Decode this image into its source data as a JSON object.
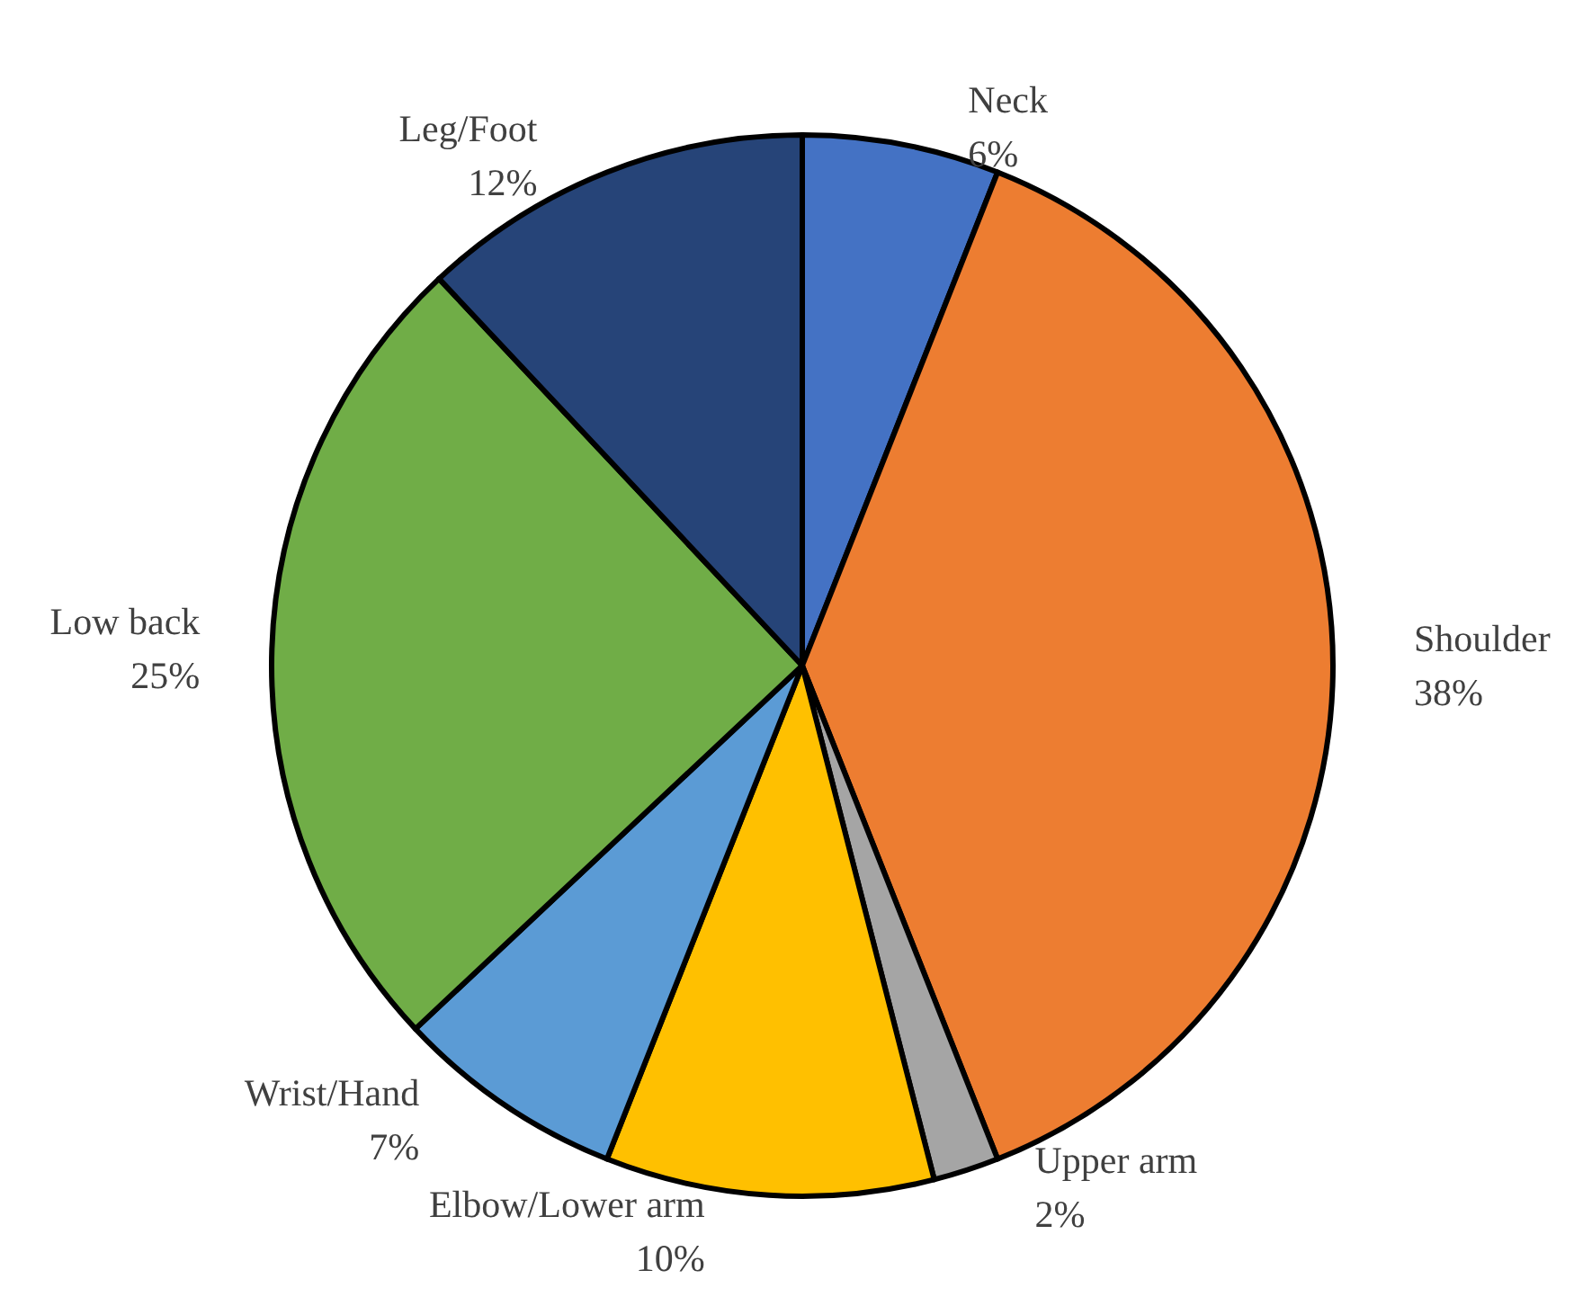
{
  "chart_data": {
    "type": "pie",
    "categories": [
      "Neck",
      "Shoulder",
      "Upper arm",
      "Elbow/Lower arm",
      "Wrist/Hand",
      "Low back",
      "Leg/Foot"
    ],
    "values": [
      6,
      38,
      2,
      10,
      7,
      25,
      12
    ],
    "value_labels": [
      "6%",
      "38%",
      "2%",
      "10%",
      "7%",
      "25%",
      "12%"
    ],
    "colors": [
      "#4472c4",
      "#ed7d31",
      "#a5a5a5",
      "#ffc000",
      "#5b9bd5",
      "#70ad47",
      "#264478"
    ],
    "legend": false
  }
}
